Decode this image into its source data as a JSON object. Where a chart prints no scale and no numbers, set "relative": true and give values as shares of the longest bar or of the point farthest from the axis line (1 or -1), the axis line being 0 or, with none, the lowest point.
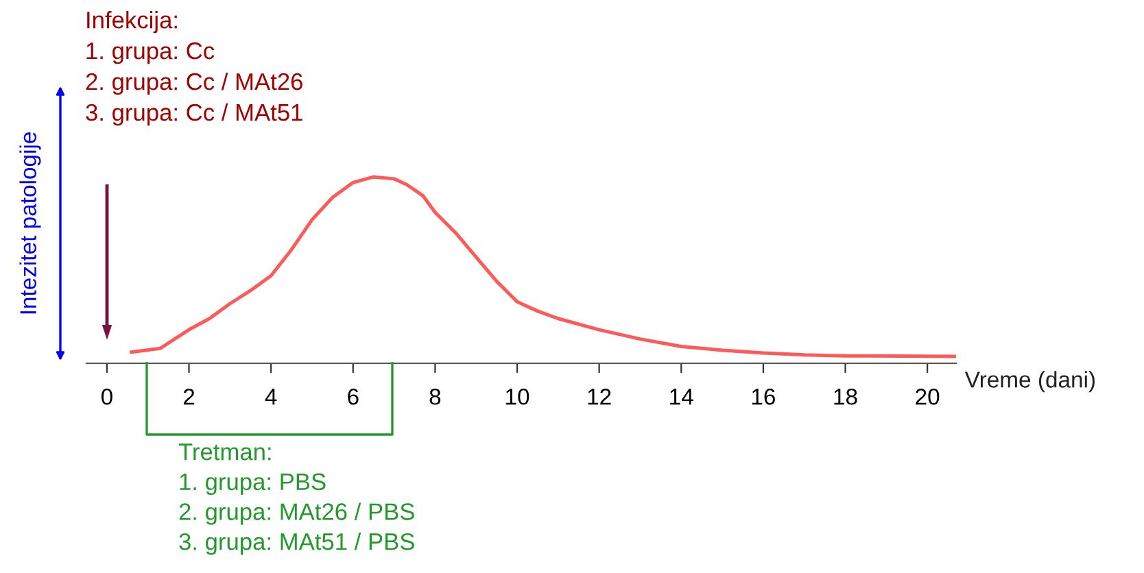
{
  "chart_data": {
    "type": "line",
    "relative": true,
    "ylabel": "Intezitet patologije",
    "xlabel": "Vreme (dani)",
    "x": [
      0.6,
      1.3,
      2,
      2.5,
      3,
      3.5,
      4,
      4.5,
      5,
      5.5,
      6,
      6.5,
      7,
      7.3,
      7.7,
      8,
      8.5,
      9,
      9.5,
      10,
      10.5,
      11,
      12,
      13,
      14,
      15,
      16,
      17,
      18,
      20.7
    ],
    "series": [
      {
        "color": "#ff5a5a",
        "values": [
          0.06,
          0.08,
          0.18,
          0.24,
          0.32,
          0.39,
          0.47,
          0.61,
          0.77,
          0.89,
          0.97,
          1.0,
          0.99,
          0.96,
          0.9,
          0.81,
          0.7,
          0.57,
          0.44,
          0.33,
          0.28,
          0.24,
          0.18,
          0.13,
          0.09,
          0.07,
          0.055,
          0.045,
          0.04,
          0.037
        ]
      }
    ],
    "xlim": [
      -0.5,
      20.7
    ],
    "xticks": [
      0,
      2,
      4,
      6,
      8,
      10,
      12,
      14,
      16,
      18,
      20
    ],
    "tick_labels": "x",
    "annotations": [
      "Infekcija:\n1. grupa: Cc\n2. grupa: Cc / MAt26\n3. grupa: Cc / MAt51",
      "Tretman:\n1. grupa: PBS\n2. grupa: MAt26 / PBS\n3. grupa: MAt51 / PBS"
    ]
  }
}
